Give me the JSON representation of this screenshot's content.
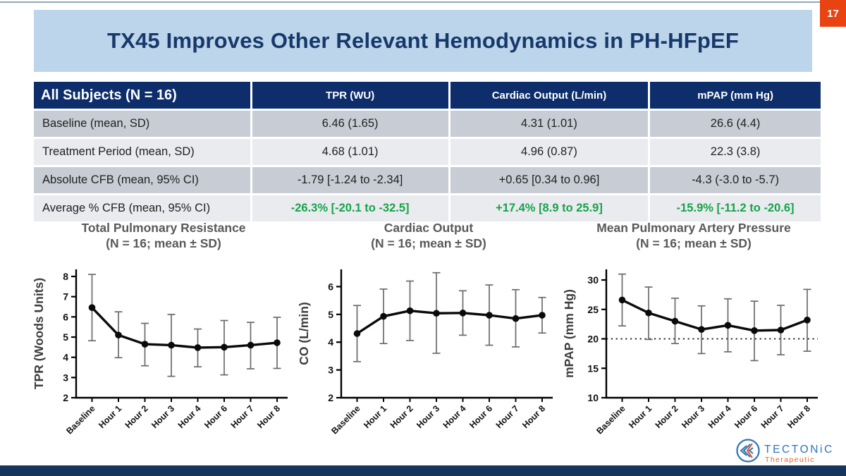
{
  "page_number": "17",
  "title": "TX45 Improves Other Relevant Hemodynamics in PH-HFpEF",
  "colors": {
    "title_band_bg": "#BCD5EA",
    "title_text": "#17386B",
    "table_header_bg": "#0D2D6B",
    "row_dark": "#C8CCD4",
    "row_light": "#E9EBEF",
    "green_text": "#17A34A",
    "badge_orange": "#E84311",
    "bottom_bar_navy": "#16355E",
    "logo_blue": "#2E75B6",
    "logo_orange": "#E8622D"
  },
  "table": {
    "header": {
      "label": "All Subjects (N = 16)",
      "columns": [
        "TPR (WU)",
        "Cardiac Output (L/min)",
        "mPAP (mm Hg)"
      ]
    },
    "rows": [
      {
        "label": "Baseline (mean, SD)",
        "values": [
          "6.46 (1.65)",
          "4.31 (1.01)",
          "26.6 (4.4)"
        ]
      },
      {
        "label": "Treatment Period (mean, SD)",
        "values": [
          "4.68 (1.01)",
          "4.96 (0.87)",
          "22.3 (3.8)"
        ]
      },
      {
        "label": "Absolute CFB (mean, 95% CI)",
        "values": [
          "-1.79 [-1.24 to -2.34]",
          "+0.65 [0.34 to 0.96]",
          "-4.3 (-3.0 to -5.7)"
        ]
      },
      {
        "label": "Average % CFB (mean, 95% CI)",
        "values": [
          "-26.3% [-20.1 to -32.5]",
          "+17.4% [8.9 to 25.9]",
          "-15.9% [-11.2 to -20.6]"
        ]
      }
    ]
  },
  "chart_data": [
    {
      "type": "line",
      "title": "Total Pulmonary Resistance",
      "subtitle": "(N = 16; mean ± SD)",
      "ylabel": "TPR (Woods Units)",
      "categories": [
        "Baseline",
        "Hour 1",
        "Hour 2",
        "Hour 3",
        "Hour 4",
        "Hour 6",
        "Hour 7",
        "Hour 8"
      ],
      "means": [
        6.46,
        5.1,
        4.65,
        4.6,
        4.48,
        4.5,
        4.6,
        4.72
      ],
      "upper": [
        8.1,
        6.25,
        5.68,
        6.12,
        5.4,
        5.82,
        5.73,
        5.98
      ],
      "lower": [
        4.82,
        3.98,
        3.58,
        3.06,
        3.53,
        3.13,
        3.43,
        3.45
      ],
      "ylim": [
        2,
        8.35
      ],
      "yticks": [
        2,
        3,
        4,
        5,
        6,
        7,
        8
      ],
      "grid": false,
      "legend": "none"
    },
    {
      "type": "line",
      "title": "Cardiac Output",
      "subtitle": "(N = 16; mean ± SD)",
      "ylabel": "CO (L/min)",
      "categories": [
        "Baseline",
        "Hour 1",
        "Hour 2",
        "Hour 3",
        "Hour 4",
        "Hour 6",
        "Hour 7",
        "Hour 8"
      ],
      "means": [
        4.31,
        4.93,
        5.13,
        5.04,
        5.05,
        4.97,
        4.85,
        4.97
      ],
      "upper": [
        5.32,
        5.91,
        6.2,
        6.5,
        5.85,
        6.06,
        5.89,
        5.61
      ],
      "lower": [
        3.3,
        3.95,
        4.06,
        3.6,
        4.25,
        3.89,
        3.83,
        4.33
      ],
      "ylim": [
        2,
        6.62
      ],
      "yticks": [
        2,
        3,
        4,
        5,
        6
      ],
      "grid": false,
      "legend": "none"
    },
    {
      "type": "line",
      "title": "Mean Pulmonary Artery Pressure",
      "subtitle": "(N = 16; mean ± SD)",
      "ylabel": "mPAP (mm Hg)",
      "categories": [
        "Baseline",
        "Hour 1",
        "Hour 2",
        "Hour 3",
        "Hour 4",
        "Hour 6",
        "Hour 7",
        "Hour 8"
      ],
      "means": [
        26.6,
        24.4,
        23.0,
        21.6,
        22.3,
        21.4,
        21.5,
        23.2
      ],
      "upper": [
        31.0,
        28.8,
        26.9,
        25.6,
        26.8,
        26.4,
        25.7,
        28.4
      ],
      "lower": [
        22.2,
        19.9,
        19.2,
        17.5,
        17.8,
        16.3,
        17.3,
        17.9
      ],
      "ylim": [
        10,
        31.8
      ],
      "yticks": [
        10,
        15,
        20,
        25,
        30
      ],
      "refline": 20,
      "grid": false,
      "legend": "none"
    }
  ],
  "logo": {
    "wordmark": "TECTONiC",
    "subtitle": "Therapeutic"
  }
}
